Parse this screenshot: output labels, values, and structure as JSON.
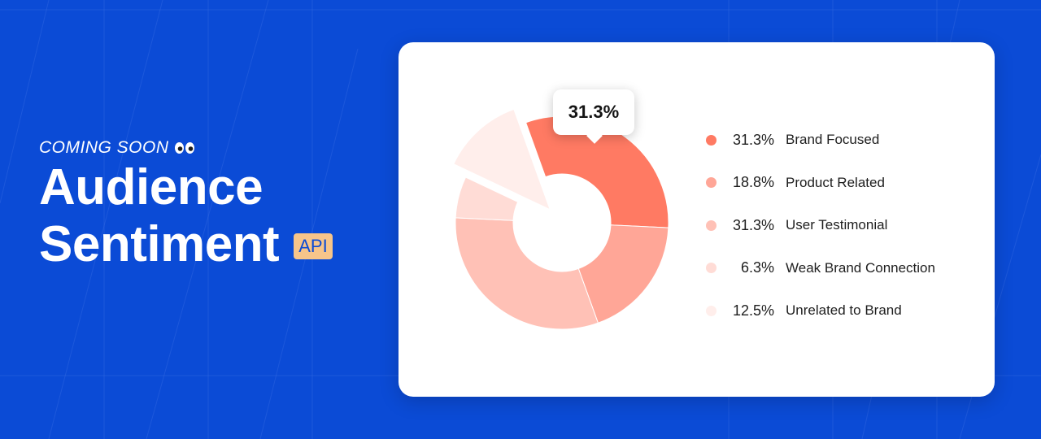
{
  "hero": {
    "eyebrow": "COMING SOON",
    "eyebrow_icon": "eyes-icon",
    "title_line1": "Audience",
    "title_line2": "Sentiment",
    "badge": "API"
  },
  "colors": {
    "background": "#0b4bd6",
    "badge": "#f7c58a",
    "card": "#ffffff"
  },
  "tooltip": {
    "value": "31.3%"
  },
  "chart_data": {
    "type": "pie",
    "style": "donut",
    "highlighted_slice": "Brand Focused",
    "exploded_slice": "Unrelated to Brand",
    "legend_position": "right",
    "slices": [
      {
        "label": "Brand Focused",
        "value": 31.3,
        "display": "31.3%",
        "color": "#ff7a63"
      },
      {
        "label": "Product Related",
        "value": 18.8,
        "display": "18.8%",
        "color": "#ffa697"
      },
      {
        "label": "User Testimonial",
        "value": 31.3,
        "display": "31.3%",
        "color": "#ffc1b6"
      },
      {
        "label": "Weak Brand Connection",
        "value": 6.3,
        "display": "6.3%",
        "color": "#ffdcd6"
      },
      {
        "label": "Unrelated to Brand",
        "value": 12.5,
        "display": "12.5%",
        "color": "#ffeeeb"
      }
    ]
  }
}
